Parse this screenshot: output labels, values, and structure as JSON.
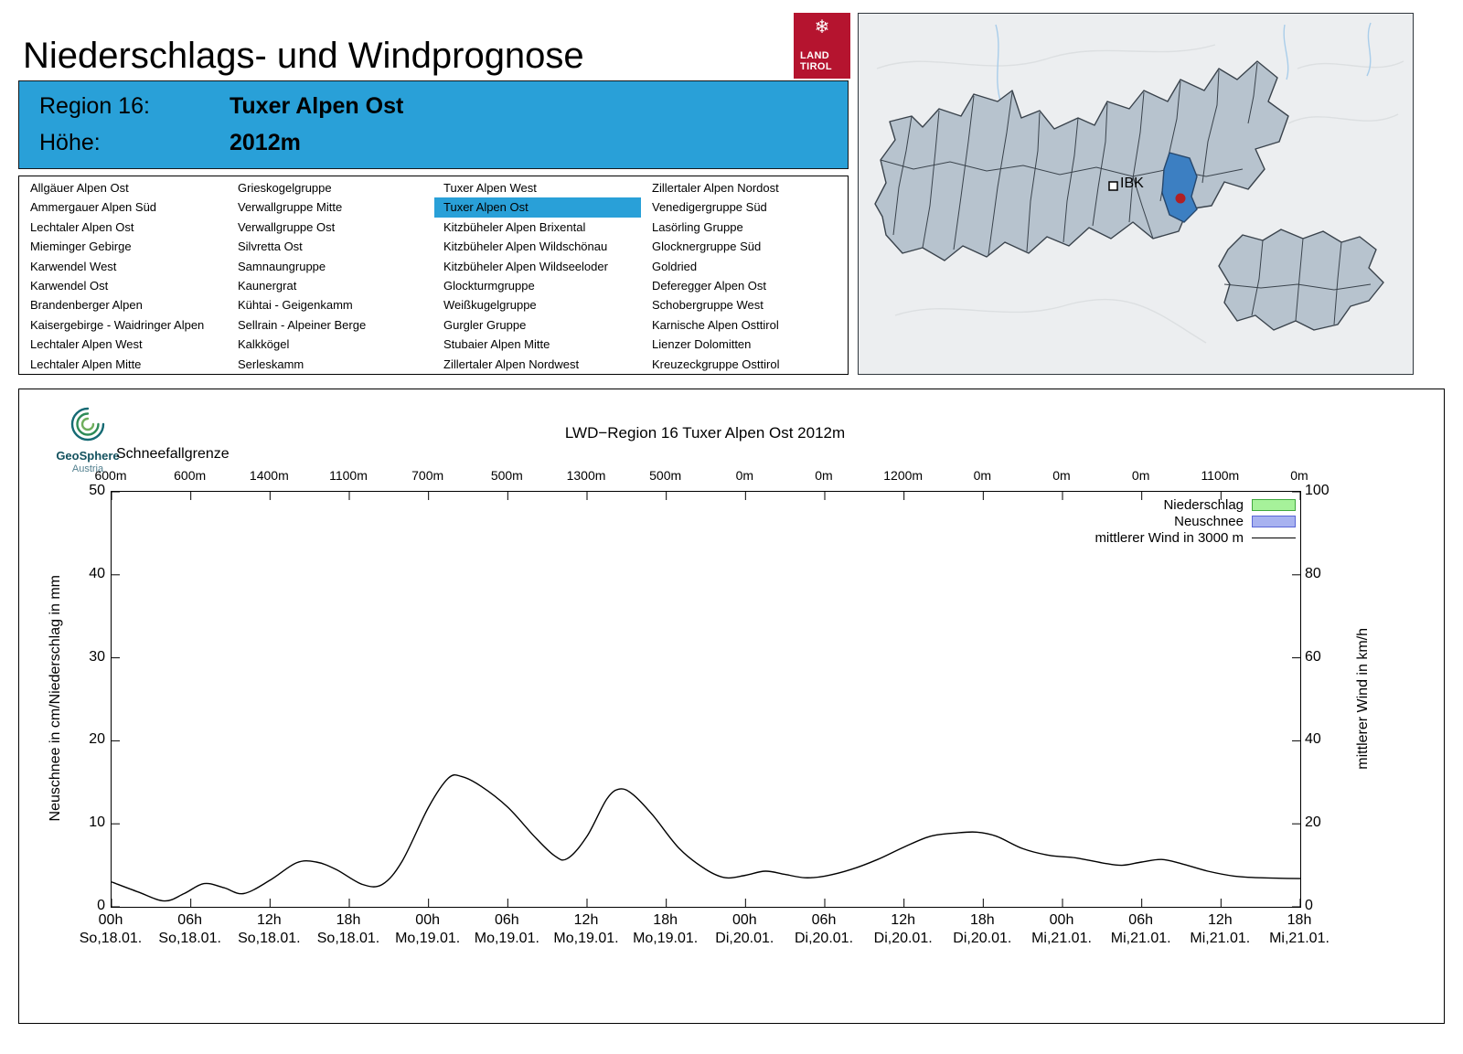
{
  "page": {
    "title": "Niederschlags- und Windprognose"
  },
  "brand": {
    "land_tirol_line1": "LAND",
    "land_tirol_line2": "TIROL",
    "logo_color": "#b5142f",
    "snowflake_icon": "❄"
  },
  "region_header": {
    "region_label": "Region 16:",
    "region_value": "Tuxer Alpen Ost",
    "altitude_label": "Höhe:",
    "altitude_value": "2012m",
    "bg_color": "#29a0d8"
  },
  "map": {
    "ibk_label": "IBK",
    "highlight_region": "Tuxer Alpen Ost",
    "highlight_color": "#3c7fc2",
    "marker_color": "#b01f24"
  },
  "region_list": {
    "selected": "Tuxer Alpen Ost",
    "columns": [
      [
        "Allgäuer Alpen Ost",
        "Ammergauer Alpen Süd",
        "Lechtaler Alpen Ost",
        "Mieminger Gebirge",
        "Karwendel West",
        "Karwendel Ost",
        "Brandenberger Alpen",
        "Kaisergebirge - Waidringer Alpen",
        "Lechtaler Alpen West",
        "Lechtaler Alpen Mitte"
      ],
      [
        "Grieskogelgruppe",
        "Verwallgruppe Mitte",
        "Verwallgruppe Ost",
        "Silvretta Ost",
        "Samnaungruppe",
        "Kaunergrat",
        "Kühtai - Geigenkamm",
        "Sellrain - Alpeiner Berge",
        "Kalkkögel",
        "Serleskamm"
      ],
      [
        "Tuxer Alpen West",
        "Tuxer Alpen Ost",
        "Kitzbüheler Alpen Brixental",
        "Kitzbüheler Alpen Wildschönau",
        "Kitzbüheler Alpen Wildseeloder",
        "Glockturmgruppe",
        "Weißkugelgruppe",
        "Gurgler Gruppe",
        "Stubaier Alpen Mitte",
        "Zillertaler Alpen Nordwest"
      ],
      [
        "Zillertaler Alpen Nordost",
        "Venedigergruppe Süd",
        "Lasörling Gruppe",
        "Glocknergruppe Süd",
        "Goldried",
        "Deferegger Alpen Ost",
        "Schobergruppe West",
        "Karnische Alpen Osttirol",
        "Lienzer Dolomitten",
        "Kreuzeckgruppe Osttirol"
      ]
    ]
  },
  "geosphere": {
    "name": "GeoSphere",
    "country": "Austria"
  },
  "chart": {
    "title": "LWD−Region 16 Tuxer Alpen Ost 2012m",
    "snowline_label": "Schneefallgrenze",
    "ylabel_left": "Neuschnee in cm/Niederschlag in mm",
    "ylabel_right": "mittlerer Wind in km/h",
    "legend": [
      {
        "label": "Niederschlag",
        "type": "box",
        "fill": "#a6f29a",
        "border": "#40a83e"
      },
      {
        "label": "Neuschnee",
        "type": "box",
        "fill": "#a8b2f0",
        "border": "#5a66d6"
      },
      {
        "label": "mittlerer Wind in 3000 m",
        "type": "line",
        "color": "#000000"
      }
    ]
  },
  "chart_data": {
    "type": "line",
    "title": "LWD−Region 16 Tuxer Alpen Ost 2012m",
    "x_hours_range": [
      0,
      90
    ],
    "x_tick_interval_hours": 6,
    "x_tick_labels_hour": [
      "00h",
      "06h",
      "12h",
      "18h",
      "00h",
      "06h",
      "12h",
      "18h",
      "00h",
      "06h",
      "12h",
      "18h",
      "00h",
      "06h",
      "12h",
      "18h"
    ],
    "x_tick_labels_date": [
      "So,18.01.",
      "So,18.01.",
      "So,18.01.",
      "So,18.01.",
      "Mo,19.01.",
      "Mo,19.01.",
      "Mo,19.01.",
      "Mo,19.01.",
      "Di,20.01.",
      "Di,20.01.",
      "Di,20.01.",
      "Di,20.01.",
      "Mi,21.01.",
      "Mi,21.01.",
      "Mi,21.01.",
      "Mi,21.01."
    ],
    "y_left": {
      "label": "Neuschnee in cm/Niederschlag in mm",
      "range": [
        0,
        50
      ],
      "ticks": [
        0,
        10,
        20,
        30,
        40,
        50
      ]
    },
    "y_right": {
      "label": "mittlerer Wind in km/h",
      "range": [
        0,
        100
      ],
      "ticks": [
        0,
        20,
        40,
        60,
        80,
        100
      ]
    },
    "schneefallgrenze": {
      "label": "Schneefallgrenze",
      "values": [
        "600m",
        "600m",
        "1400m",
        "1100m",
        "700m",
        "500m",
        "1300m",
        "500m",
        "0m",
        "0m",
        "1200m",
        "0m",
        "0m",
        "0m",
        "1100m",
        "0m"
      ]
    },
    "grid": false,
    "legend_position": "top-right",
    "series": [
      {
        "name": "Niederschlag",
        "type": "bar",
        "axis": "left",
        "unit": "mm",
        "values": [
          0,
          0,
          0,
          0,
          0,
          0,
          0,
          0,
          0,
          0,
          0,
          0,
          0,
          0,
          0,
          0
        ]
      },
      {
        "name": "Neuschnee",
        "type": "bar",
        "axis": "left",
        "unit": "cm",
        "values": [
          0,
          0,
          0,
          0,
          0,
          0,
          0,
          0,
          0,
          0,
          0,
          0,
          0,
          0,
          0,
          0
        ]
      },
      {
        "name": "mittlerer Wind in 3000 m",
        "type": "line",
        "axis": "right",
        "unit": "km/h",
        "points": [
          [
            0,
            6.0
          ],
          [
            2,
            3.6
          ],
          [
            4,
            1.4
          ],
          [
            5.5,
            3.2
          ],
          [
            7,
            5.6
          ],
          [
            8.5,
            4.6
          ],
          [
            10,
            3.2
          ],
          [
            12,
            6.4
          ],
          [
            14,
            10.6
          ],
          [
            15.5,
            10.8
          ],
          [
            17,
            9.0
          ],
          [
            19,
            5.4
          ],
          [
            20.5,
            5.4
          ],
          [
            22,
            11.0
          ],
          [
            24,
            24.0
          ],
          [
            25.5,
            31.0
          ],
          [
            26.5,
            31.4
          ],
          [
            28,
            29.0
          ],
          [
            30,
            24.0
          ],
          [
            32,
            17.0
          ],
          [
            33.5,
            12.4
          ],
          [
            34.5,
            11.6
          ],
          [
            36,
            17.0
          ],
          [
            37.5,
            26.0
          ],
          [
            38.5,
            28.4
          ],
          [
            39.5,
            27.0
          ],
          [
            41,
            22.0
          ],
          [
            43,
            14.0
          ],
          [
            45,
            9.0
          ],
          [
            46.5,
            7.0
          ],
          [
            48,
            7.6
          ],
          [
            49.5,
            8.6
          ],
          [
            51,
            7.8
          ],
          [
            52.5,
            7.0
          ],
          [
            54,
            7.4
          ],
          [
            56,
            9.0
          ],
          [
            58,
            11.4
          ],
          [
            60,
            14.4
          ],
          [
            62,
            17.0
          ],
          [
            64,
            17.8
          ],
          [
            65.5,
            18.0
          ],
          [
            67,
            17.0
          ],
          [
            69,
            14.0
          ],
          [
            71,
            12.4
          ],
          [
            73,
            11.8
          ],
          [
            75,
            10.6
          ],
          [
            76.5,
            10.0
          ],
          [
            78,
            10.8
          ],
          [
            79.5,
            11.4
          ],
          [
            81,
            10.4
          ],
          [
            83,
            8.6
          ],
          [
            85,
            7.4
          ],
          [
            87,
            7.0
          ],
          [
            90,
            6.8
          ]
        ]
      }
    ]
  }
}
